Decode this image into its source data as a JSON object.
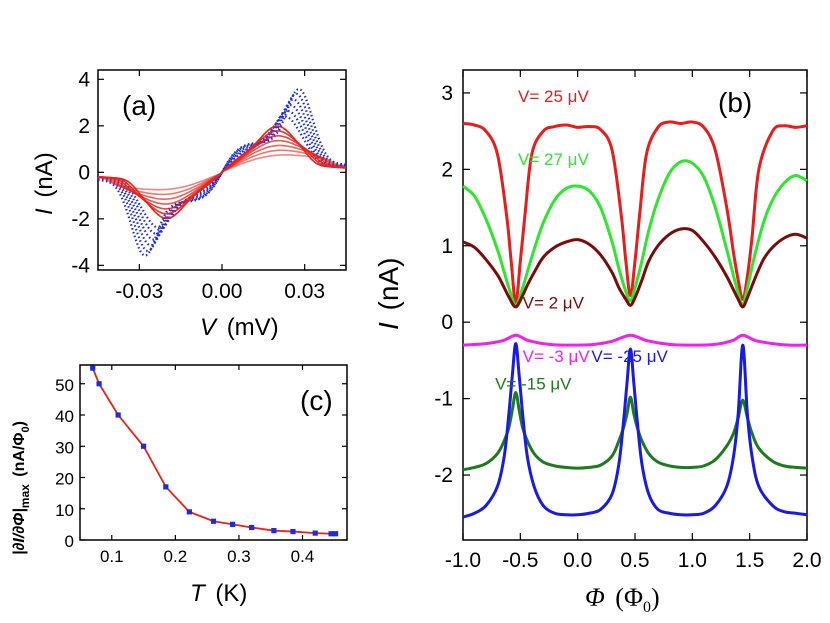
{
  "chart_data": [
    {
      "panel": "(a)",
      "type": "line",
      "xlabel_var": "V",
      "xlabel_unit": "(mV)",
      "ylabel_var": "I",
      "ylabel_unit": "(nA)",
      "xlim": [
        -0.045,
        0.045
      ],
      "ylim": [
        -4.2,
        4.4
      ],
      "xticks": [
        -0.03,
        0.0,
        0.03
      ],
      "xtick_labels": [
        "-0.03",
        "0.00",
        "0.03"
      ],
      "yticks": [
        -4,
        -2,
        0,
        2,
        4
      ],
      "ytick_labels": [
        "-4",
        "-2",
        "0",
        "2",
        "4"
      ],
      "curve_model": "I(V) = sign(V) * (A*tanh(|V|/w) + B*exp(-((|V|-v0)/s)^2)) * (1 - 1/(1+exp(-(|V|-v0-1.5*s)/0.0018)))",
      "families": [
        {
          "name": "low-temperature",
          "color": "#1a2be6",
          "style": "dotted",
          "params": [
            {
              "A": 1.3,
              "w": 0.006,
              "B": 2.3,
              "v0": 0.028,
              "s": 0.006
            },
            {
              "A": 1.3,
              "w": 0.006,
              "B": 2.1,
              "v0": 0.027,
              "s": 0.006
            },
            {
              "A": 1.25,
              "w": 0.006,
              "B": 1.9,
              "v0": 0.026,
              "s": 0.0062
            },
            {
              "A": 1.2,
              "w": 0.0065,
              "B": 1.7,
              "v0": 0.025,
              "s": 0.0064
            },
            {
              "A": 1.15,
              "w": 0.007,
              "B": 1.5,
              "v0": 0.024,
              "s": 0.0066
            },
            {
              "A": 1.1,
              "w": 0.0075,
              "B": 1.3,
              "v0": 0.023,
              "s": 0.0068
            }
          ]
        },
        {
          "name": "high-temperature",
          "color": "#e6231a",
          "style": "solid",
          "params": [
            {
              "A": 0.9,
              "w": 0.008,
              "B": 1.1,
              "v0": 0.02,
              "s": 0.008
            },
            {
              "A": 0.85,
              "w": 0.009,
              "B": 0.95,
              "v0": 0.02,
              "s": 0.009
            },
            {
              "A": 0.8,
              "w": 0.01,
              "B": 0.8,
              "v0": 0.02,
              "s": 0.01
            },
            {
              "A": 0.75,
              "w": 0.011,
              "B": 0.65,
              "v0": 0.02,
              "s": 0.011
            },
            {
              "A": 0.7,
              "w": 0.012,
              "B": 0.5,
              "v0": 0.02,
              "s": 0.012
            },
            {
              "A": 0.65,
              "w": 0.013,
              "B": 0.35,
              "v0": 0.02,
              "s": 0.013
            },
            {
              "A": 0.6,
              "w": 0.014,
              "B": 0.2,
              "v0": 0.02,
              "s": 0.014
            }
          ]
        }
      ]
    },
    {
      "panel": "(b)",
      "type": "line",
      "xlabel_var": "Φ",
      "xlabel_unit": "(Φ",
      "xlabel_sub": "0",
      "xlabel_close": ")",
      "ylabel_var": "I",
      "ylabel_unit": "(nA)",
      "xlim": [
        -1.0,
        2.0
      ],
      "ylim": [
        -2.85,
        3.3
      ],
      "xticks": [
        -1.0,
        -0.5,
        0.0,
        0.5,
        1.0,
        1.5,
        2.0
      ],
      "xtick_labels": [
        "-1.0",
        "-0.5",
        "0.0",
        "0.5",
        "1.0",
        "1.5",
        "2.0"
      ],
      "yticks": [
        -2,
        -1,
        0,
        1,
        2,
        3
      ],
      "ytick_labels": [
        "-2",
        "-1",
        "0",
        "1",
        "2",
        "3"
      ],
      "period_min_positions": [
        -0.54,
        0.46,
        1.44
      ],
      "series": [
        {
          "name": "V= 25 μV",
          "color": "#e81c1c",
          "x": [
            -1.0,
            -0.9,
            -0.8,
            -0.7,
            -0.62,
            -0.58,
            -0.54,
            -0.5,
            -0.46,
            -0.4,
            -0.3,
            -0.2,
            -0.1,
            0.0,
            0.1,
            0.2,
            0.3,
            0.38,
            0.42,
            0.46,
            0.5,
            0.54,
            0.6,
            0.7,
            0.8,
            0.9,
            1.0,
            1.1,
            1.2,
            1.3,
            1.36,
            1.4,
            1.44,
            1.48,
            1.52,
            1.58,
            1.7,
            1.8,
            1.9,
            2.0
          ],
          "values": [
            2.6,
            2.58,
            2.5,
            2.2,
            1.4,
            0.8,
            0.25,
            0.8,
            1.4,
            2.2,
            2.5,
            2.56,
            2.58,
            2.55,
            2.56,
            2.52,
            2.25,
            1.4,
            0.8,
            0.35,
            0.8,
            1.4,
            2.2,
            2.55,
            2.62,
            2.6,
            2.62,
            2.55,
            2.25,
            1.5,
            0.9,
            0.55,
            0.3,
            0.6,
            1.1,
            2.0,
            2.5,
            2.57,
            2.55,
            2.57
          ]
        },
        {
          "name": "V= 27 μV",
          "color": "#2ee62e",
          "x": [
            -1.0,
            -0.9,
            -0.8,
            -0.7,
            -0.64,
            -0.6,
            -0.54,
            -0.48,
            -0.44,
            -0.38,
            -0.3,
            -0.2,
            -0.1,
            0.0,
            0.1,
            0.2,
            0.3,
            0.36,
            0.42,
            0.46,
            0.5,
            0.56,
            0.62,
            0.7,
            0.8,
            0.9,
            1.0,
            1.1,
            1.2,
            1.3,
            1.36,
            1.4,
            1.44,
            1.48,
            1.54,
            1.62,
            1.7,
            1.8,
            1.9,
            2.0
          ],
          "values": [
            1.78,
            1.65,
            1.35,
            0.95,
            0.65,
            0.45,
            0.22,
            0.45,
            0.65,
            0.95,
            1.3,
            1.6,
            1.75,
            1.78,
            1.72,
            1.5,
            1.05,
            0.7,
            0.4,
            0.28,
            0.45,
            0.8,
            1.2,
            1.6,
            1.95,
            2.1,
            2.08,
            1.9,
            1.5,
            0.95,
            0.6,
            0.38,
            0.22,
            0.45,
            0.85,
            1.3,
            1.6,
            1.82,
            1.92,
            1.85
          ]
        },
        {
          "name": "V= 2 μV",
          "color": "#7a0b0b",
          "x": [
            -1.0,
            -0.9,
            -0.8,
            -0.7,
            -0.64,
            -0.6,
            -0.54,
            -0.48,
            -0.44,
            -0.38,
            -0.3,
            -0.2,
            -0.1,
            0.0,
            0.1,
            0.2,
            0.3,
            0.36,
            0.42,
            0.46,
            0.5,
            0.56,
            0.62,
            0.7,
            0.8,
            0.9,
            1.0,
            1.1,
            1.2,
            1.3,
            1.36,
            1.4,
            1.44,
            1.48,
            1.54,
            1.62,
            1.7,
            1.8,
            1.9,
            2.0
          ],
          "values": [
            1.05,
            0.98,
            0.82,
            0.62,
            0.45,
            0.33,
            0.2,
            0.35,
            0.48,
            0.65,
            0.85,
            0.98,
            1.05,
            1.08,
            1.02,
            0.88,
            0.65,
            0.45,
            0.3,
            0.22,
            0.32,
            0.55,
            0.8,
            1.0,
            1.15,
            1.22,
            1.2,
            1.05,
            0.85,
            0.6,
            0.42,
            0.3,
            0.2,
            0.32,
            0.55,
            0.82,
            0.98,
            1.1,
            1.15,
            1.1
          ]
        },
        {
          "name": "V= -3 μV",
          "color": "#ee22ee",
          "x": [
            -1.0,
            -0.8,
            -0.65,
            -0.54,
            -0.43,
            -0.25,
            -0.05,
            0.15,
            0.3,
            0.46,
            0.6,
            0.8,
            1.0,
            1.2,
            1.35,
            1.44,
            1.55,
            1.7,
            1.85,
            2.0
          ],
          "values": [
            -0.3,
            -0.28,
            -0.24,
            -0.17,
            -0.24,
            -0.29,
            -0.3,
            -0.29,
            -0.25,
            -0.17,
            -0.24,
            -0.29,
            -0.3,
            -0.29,
            -0.24,
            -0.17,
            -0.24,
            -0.28,
            -0.3,
            -0.3
          ]
        },
        {
          "name": "V= -15 μV",
          "color": "#1e7a1e",
          "x": [
            -1.0,
            -0.9,
            -0.8,
            -0.7,
            -0.64,
            -0.6,
            -0.57,
            -0.54,
            -0.51,
            -0.48,
            -0.44,
            -0.38,
            -0.3,
            -0.2,
            -0.1,
            0.0,
            0.1,
            0.2,
            0.3,
            0.36,
            0.4,
            0.43,
            0.46,
            0.49,
            0.52,
            0.56,
            0.62,
            0.7,
            0.8,
            0.9,
            1.0,
            1.1,
            1.2,
            1.3,
            1.36,
            1.4,
            1.44,
            1.48,
            1.52,
            1.58,
            1.7,
            1.8,
            1.9,
            2.0
          ],
          "values": [
            -1.93,
            -1.9,
            -1.85,
            -1.72,
            -1.55,
            -1.38,
            -1.15,
            -0.92,
            -1.15,
            -1.38,
            -1.55,
            -1.72,
            -1.83,
            -1.88,
            -1.9,
            -1.91,
            -1.9,
            -1.87,
            -1.75,
            -1.55,
            -1.38,
            -1.2,
            -0.98,
            -1.2,
            -1.38,
            -1.55,
            -1.72,
            -1.83,
            -1.88,
            -1.9,
            -1.9,
            -1.88,
            -1.8,
            -1.62,
            -1.45,
            -1.25,
            -1.02,
            -1.25,
            -1.45,
            -1.65,
            -1.82,
            -1.88,
            -1.9,
            -1.91
          ]
        },
        {
          "name": "V= -25 μV",
          "color": "#1a1ae6",
          "x": [
            -1.0,
            -0.9,
            -0.8,
            -0.7,
            -0.64,
            -0.6,
            -0.57,
            -0.54,
            -0.51,
            -0.48,
            -0.44,
            -0.38,
            -0.3,
            -0.2,
            -0.1,
            0.0,
            0.1,
            0.2,
            0.3,
            0.36,
            0.4,
            0.43,
            0.46,
            0.49,
            0.52,
            0.56,
            0.62,
            0.7,
            0.8,
            0.9,
            1.0,
            1.1,
            1.2,
            1.3,
            1.36,
            1.4,
            1.44,
            1.48,
            1.52,
            1.58,
            1.7,
            1.8,
            1.9,
            2.0
          ],
          "values": [
            -2.55,
            -2.5,
            -2.4,
            -2.15,
            -1.75,
            -1.2,
            -0.7,
            -0.28,
            -0.7,
            -1.2,
            -1.75,
            -2.15,
            -2.4,
            -2.5,
            -2.52,
            -2.52,
            -2.5,
            -2.45,
            -2.25,
            -1.85,
            -1.3,
            -0.8,
            -0.35,
            -0.8,
            -1.3,
            -1.85,
            -2.25,
            -2.45,
            -2.5,
            -2.52,
            -2.52,
            -2.5,
            -2.4,
            -2.15,
            -1.75,
            -1.2,
            -0.3,
            -1.2,
            -1.75,
            -2.15,
            -2.4,
            -2.48,
            -2.5,
            -2.52
          ]
        }
      ],
      "annotations": [
        {
          "text": "V= 25 μV",
          "color": "#e81c1c",
          "at": [
            -0.52,
            2.88
          ]
        },
        {
          "text": "V= 27 μV",
          "color": "#2ee62e",
          "at": [
            -0.52,
            2.06
          ]
        },
        {
          "text": "V= 2 μV",
          "color": "#7a0b0b",
          "at": [
            -0.48,
            0.18
          ]
        },
        {
          "text": "V= -3 μV",
          "color": "#ee22ee",
          "at": [
            -0.48,
            -0.52
          ]
        },
        {
          "text": "V= -25 μV",
          "color": "#1a1ae6",
          "at": [
            0.12,
            -0.52
          ]
        },
        {
          "text": "V= -15 μV",
          "color": "#1e7a1e",
          "at": [
            -0.72,
            -0.88
          ]
        }
      ]
    },
    {
      "panel": "(c)",
      "type": "line",
      "xlabel_var": "T",
      "xlabel_unit": "(K)",
      "ylabel_text": "|∂I/∂Φ|",
      "ylabel_sub": "max",
      "ylabel_unit": "(nA/Φ",
      "ylabel_unit_sub": "0",
      "ylabel_unit_close": ")",
      "xlim": [
        0.05,
        0.47
      ],
      "ylim": [
        0,
        56
      ],
      "xticks": [
        0.1,
        0.2,
        0.3,
        0.4
      ],
      "xtick_labels": [
        "0.1",
        "0.2",
        "0.3",
        "0.4"
      ],
      "yticks": [
        0,
        10,
        20,
        30,
        40,
        50
      ],
      "ytick_labels": [
        "0",
        "10",
        "20",
        "30",
        "40",
        "50"
      ],
      "series": [
        {
          "name": "|dI/dPhi|max",
          "line_color": "#e6231a",
          "marker_color": "#1a2be6",
          "x": [
            0.07,
            0.08,
            0.11,
            0.15,
            0.185,
            0.222,
            0.26,
            0.29,
            0.32,
            0.355,
            0.385,
            0.42,
            0.445,
            0.452
          ],
          "values": [
            55,
            50,
            40,
            30,
            17,
            9,
            6,
            5,
            4,
            3,
            2.7,
            2.2,
            2.0,
            2.0
          ]
        }
      ]
    }
  ]
}
